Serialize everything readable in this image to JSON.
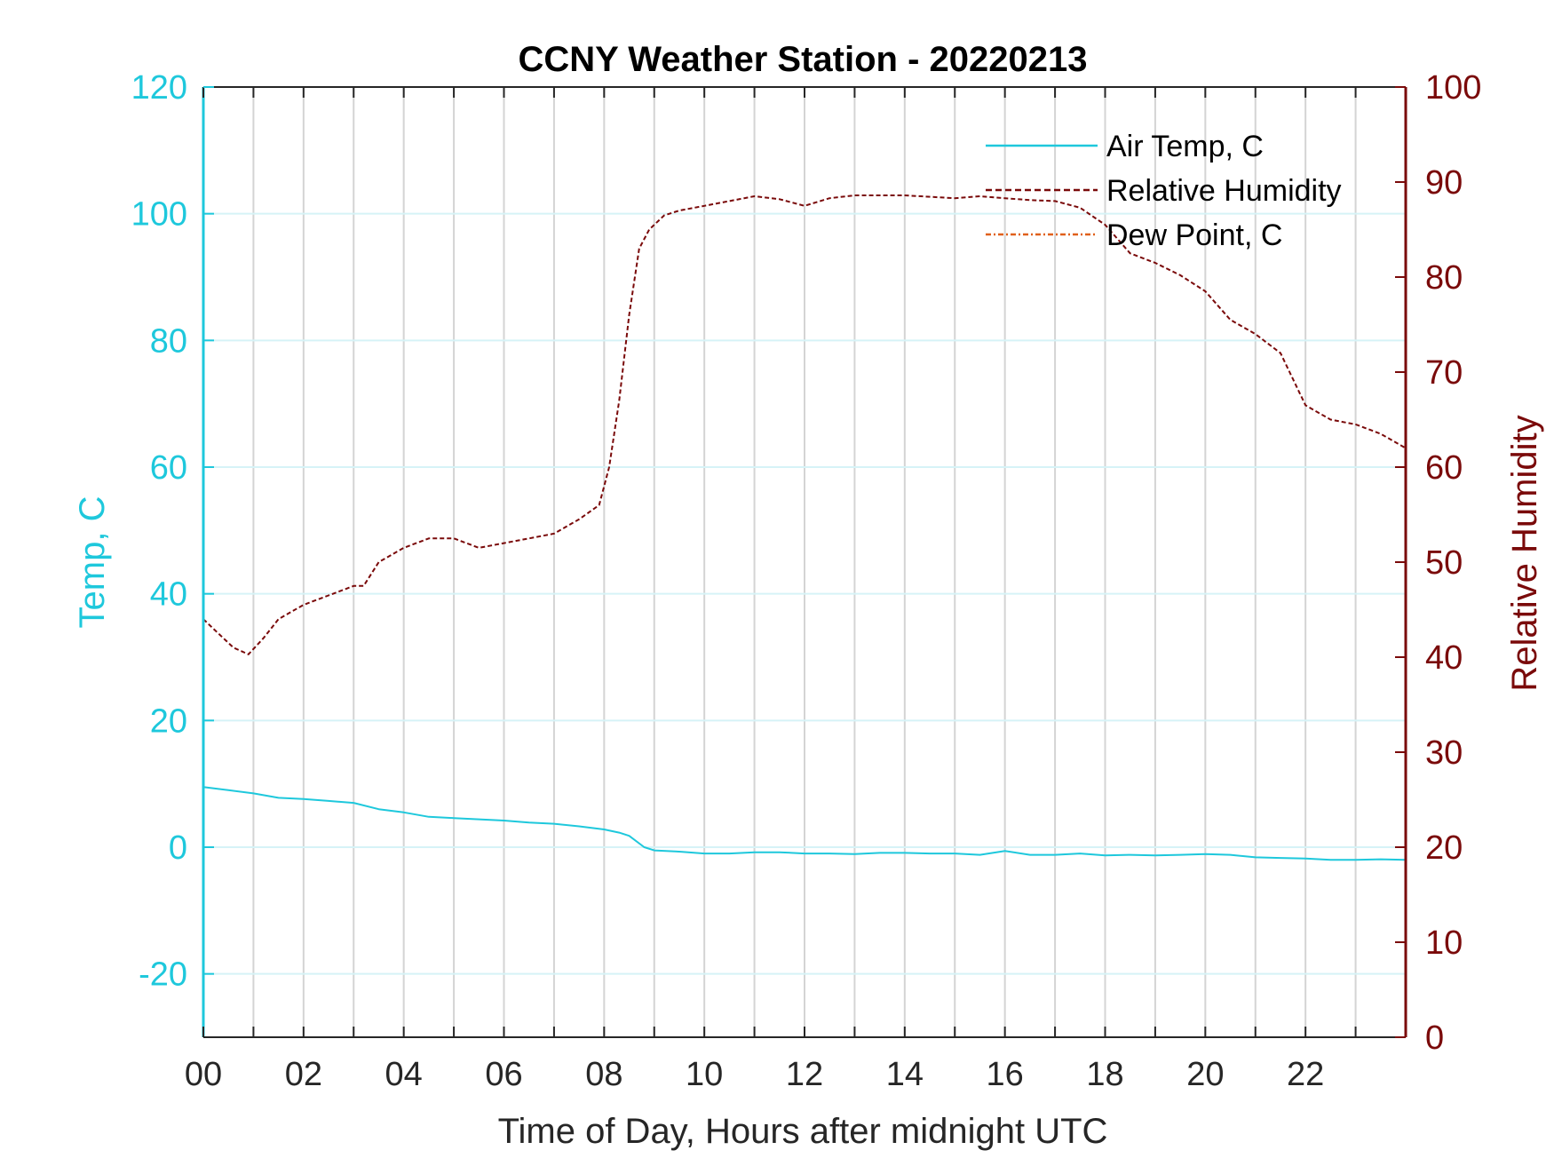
{
  "chart_data": {
    "type": "line",
    "title": "CCNY Weather Station - 20220213",
    "xlabel": "Time of Day, Hours after midnight UTC",
    "ylabel_left": "Temp, C",
    "ylabel_right": "Relative Humidity",
    "x_ticks": [
      "00",
      "02",
      "04",
      "06",
      "08",
      "10",
      "12",
      "14",
      "16",
      "18",
      "20",
      "22"
    ],
    "xlim": [
      0,
      24
    ],
    "ylim_left": [
      -30,
      120
    ],
    "ylim_right": [
      0,
      100
    ],
    "left_ticks": [
      -20,
      0,
      20,
      40,
      60,
      80,
      100,
      120
    ],
    "right_ticks": [
      0,
      10,
      20,
      30,
      40,
      50,
      60,
      70,
      80,
      90,
      100
    ],
    "grid": "vertical every hour; horizontal light cyan at left ticks",
    "legend_position": "top-right",
    "colors": {
      "temp": "#1ec8dc",
      "rh": "#7a0a0a",
      "dew": "#e0601a",
      "vgrid": "#d4d4d4",
      "hgrid": "#d6f3f7"
    },
    "series": [
      {
        "name": "Air Temp, C",
        "axis": "left",
        "style": "solid",
        "x": [
          0,
          0.5,
          1,
          1.5,
          2,
          2.5,
          3,
          3.5,
          4,
          4.5,
          5,
          5.5,
          6,
          6.5,
          7,
          7.5,
          8,
          8.3,
          8.5,
          8.8,
          9,
          9.5,
          10,
          10.5,
          11,
          11.5,
          12,
          12.5,
          13,
          13.5,
          14,
          14.5,
          15,
          15.5,
          16,
          16.5,
          17,
          17.5,
          18,
          18.5,
          19,
          19.5,
          20,
          20.5,
          21,
          21.5,
          22,
          22.5,
          23,
          23.5,
          24
        ],
        "y": [
          9.5,
          9,
          8.5,
          7.8,
          7.6,
          7.3,
          7,
          6,
          5.5,
          4.8,
          4.6,
          4.4,
          4.2,
          3.9,
          3.7,
          3.3,
          2.8,
          2.3,
          1.8,
          0,
          -0.5,
          -0.7,
          -1,
          -1,
          -0.8,
          -0.8,
          -1,
          -1,
          -1.1,
          -0.9,
          -0.9,
          -1,
          -1,
          -1.2,
          -0.6,
          -1.2,
          -1.2,
          -1,
          -1.3,
          -1.2,
          -1.3,
          -1.2,
          -1.1,
          -1.2,
          -1.6,
          -1.7,
          -1.8,
          -2,
          -2,
          -1.9,
          -2
        ]
      },
      {
        "name": "Relative Humidity",
        "axis": "right",
        "style": "dashed",
        "x": [
          0,
          0.3,
          0.6,
          0.9,
          1.2,
          1.5,
          2,
          2.5,
          3,
          3.2,
          3.5,
          4,
          4.5,
          5,
          5.5,
          6,
          6.5,
          7,
          7.5,
          7.9,
          8.1,
          8.3,
          8.5,
          8.7,
          8.9,
          9.2,
          9.5,
          10,
          10.5,
          11,
          11.5,
          12,
          12.5,
          13,
          14,
          15,
          15.5,
          16,
          16.5,
          17,
          17.5,
          18,
          18.5,
          19,
          19.5,
          20,
          20.5,
          21,
          21.5,
          22,
          22.5,
          23,
          23.5,
          24
        ],
        "y": [
          44,
          42.5,
          41,
          40.3,
          42,
          44,
          45.5,
          46.5,
          47.5,
          47.5,
          50,
          51.5,
          52.5,
          52.5,
          51.5,
          52,
          52.5,
          53,
          54.5,
          56,
          60,
          67,
          76,
          83,
          85,
          86.5,
          87,
          87.5,
          88,
          88.5,
          88.2,
          87.5,
          88.3,
          88.6,
          88.6,
          88.3,
          88.5,
          88.3,
          88.1,
          88,
          87.3,
          85.5,
          82.5,
          81.5,
          80.2,
          78.5,
          75.5,
          74,
          72,
          66.5,
          65,
          64.5,
          63.5,
          62
        ]
      },
      {
        "name": "Dew Point, C",
        "axis": "left",
        "style": "dash-dot",
        "x": [],
        "y": []
      }
    ]
  }
}
